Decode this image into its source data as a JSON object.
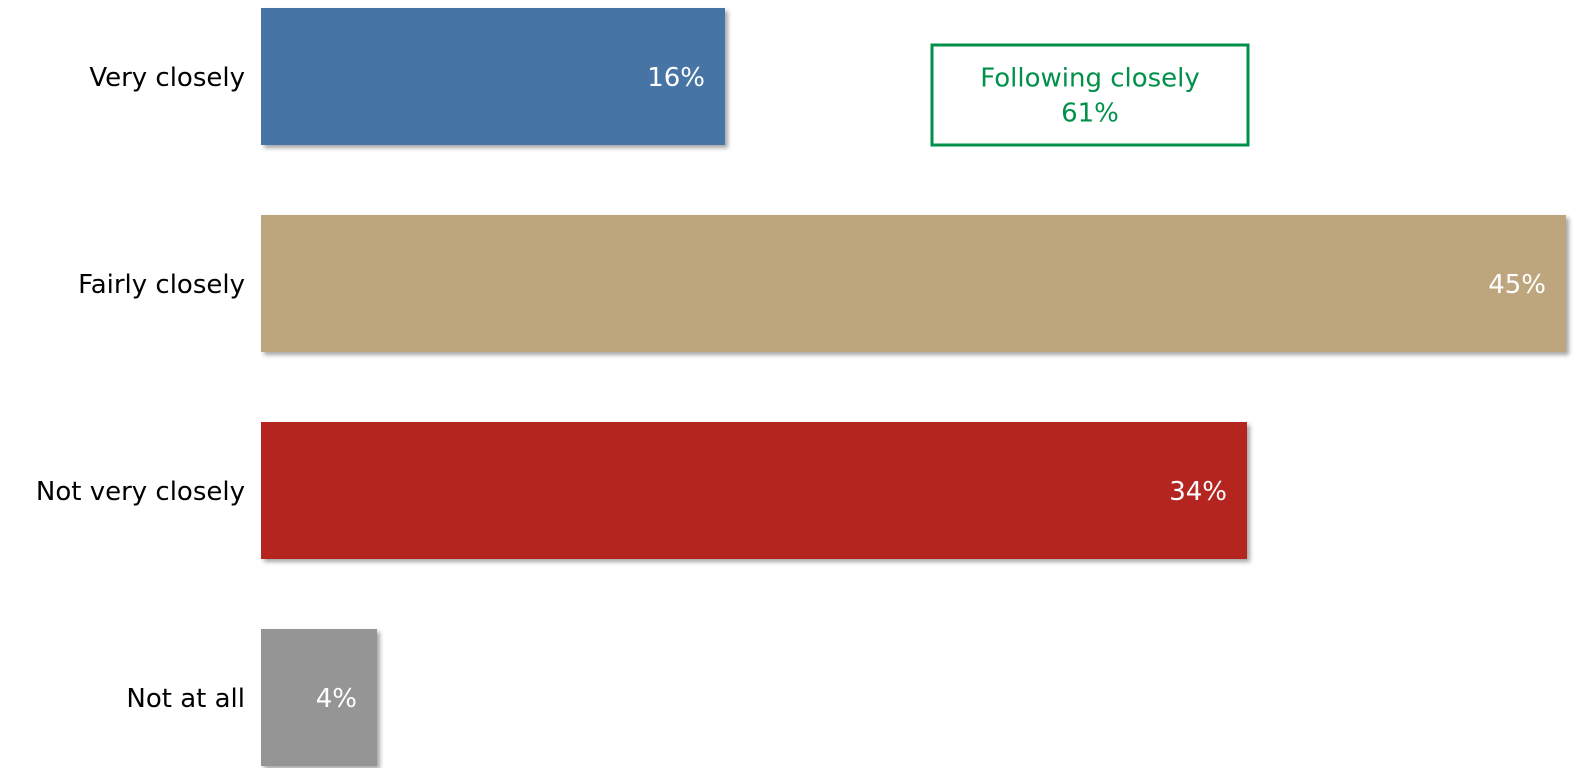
{
  "chart_data": {
    "type": "bar",
    "orientation": "horizontal",
    "categories": [
      "Very closely",
      "Fairly closely",
      "Not very closely",
      "Not at all"
    ],
    "values": [
      16,
      45,
      34,
      4
    ],
    "value_labels": [
      "16%",
      "45%",
      "34%",
      "4%"
    ],
    "colors": [
      "#4674a5",
      "#bda67d",
      "#b42520",
      "#959595"
    ],
    "annotation": {
      "lines": [
        "Following closely",
        "61%"
      ],
      "color": "#00904a"
    }
  }
}
